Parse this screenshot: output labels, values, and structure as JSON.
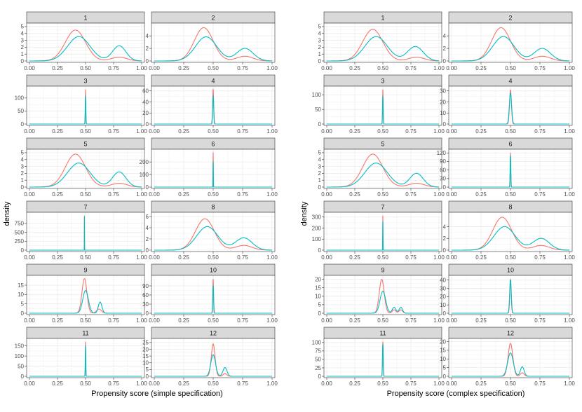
{
  "figure": {
    "ylabel": "density",
    "colors": {
      "treated": "#F8766D",
      "control": "#00BFC4",
      "strip": "#d9d9d9",
      "grid": "#ebebeb",
      "border": "#333333"
    },
    "x_ticks": [
      "0.00",
      "0.25",
      "0.50",
      "0.75",
      "1.00"
    ]
  },
  "chart_data": [
    {
      "type": "line",
      "title": "",
      "xlabel": "Propensity score (simple specification)",
      "ylabel": "density",
      "xlim": [
        0,
        1
      ],
      "series_names": [
        "red",
        "teal"
      ],
      "facets": [
        {
          "label": "1",
          "ylim": [
            0,
            5.3
          ],
          "yticks": [
            0,
            1,
            2,
            3,
            4,
            5
          ],
          "kind": "bimodal",
          "red": [
            [
              0.41,
              0.09,
              4.5
            ],
            [
              0.8,
              0.07,
              0.55
            ]
          ],
          "teal": [
            [
              0.44,
              0.1,
              3.55
            ],
            [
              0.8,
              0.06,
              2.2
            ]
          ]
        },
        {
          "label": "2",
          "ylim": [
            0,
            5.8
          ],
          "yticks": [
            0,
            2,
            4
          ],
          "kind": "bimodal",
          "red": [
            [
              0.42,
              0.08,
              5.3
            ],
            [
              0.77,
              0.07,
              0.75
            ]
          ],
          "teal": [
            [
              0.44,
              0.09,
              3.85
            ],
            [
              0.77,
              0.07,
              2.0
            ]
          ]
        },
        {
          "label": "3",
          "ylim": [
            0,
            140
          ],
          "yticks": [
            0,
            50,
            100
          ],
          "kind": "spike",
          "red": [
            [
              0.5,
              0.0022,
              132
            ]
          ],
          "teal": [
            [
              0.5,
              0.0028,
              108
            ]
          ]
        },
        {
          "label": "4",
          "ylim": [
            0,
            66
          ],
          "yticks": [
            0,
            20,
            40,
            60
          ],
          "kind": "spike",
          "red": [
            [
              0.5,
              0.004,
              63
            ]
          ],
          "teal": [
            [
              0.5,
              0.005,
              51
            ]
          ]
        },
        {
          "label": "5",
          "ylim": [
            0,
            5.3
          ],
          "yticks": [
            0,
            1,
            2,
            3,
            4,
            5
          ],
          "kind": "bimodal",
          "red": [
            [
              0.41,
              0.09,
              4.8
            ],
            [
              0.8,
              0.07,
              0.55
            ]
          ],
          "teal": [
            [
              0.44,
              0.1,
              3.5
            ],
            [
              0.8,
              0.06,
              2.2
            ]
          ]
        },
        {
          "label": "6",
          "ylim": [
            0,
            290
          ],
          "yticks": [
            0,
            100,
            200
          ],
          "kind": "spike",
          "red": [
            [
              0.5,
              0.0012,
              275
            ]
          ],
          "teal": [
            [
              0.5,
              0.0016,
              205
            ]
          ]
        },
        {
          "label": "7",
          "ylim": [
            0,
            1020
          ],
          "yticks": [
            0,
            250,
            500,
            750
          ],
          "kind": "spike",
          "red": [
            [
              0.49,
              0.0005,
              960
            ]
          ],
          "teal": [
            [
              0.49,
              0.0007,
              930
            ]
          ]
        },
        {
          "label": "8",
          "ylim": [
            0,
            6.5
          ],
          "yticks": [
            0,
            2,
            4,
            6
          ],
          "kind": "bimodal",
          "red": [
            [
              0.43,
              0.08,
              5.6
            ],
            [
              0.76,
              0.07,
              0.85
            ]
          ],
          "teal": [
            [
              0.45,
              0.09,
              4.2
            ],
            [
              0.76,
              0.07,
              2.2
            ]
          ]
        },
        {
          "label": "9",
          "ylim": [
            0,
            19.5
          ],
          "yticks": [
            0,
            5,
            10,
            15
          ],
          "kind": "multi",
          "red": [
            [
              0.49,
              0.022,
              18.5
            ],
            [
              0.62,
              0.022,
              2.2
            ]
          ],
          "teal": [
            [
              0.5,
              0.025,
              12.2
            ],
            [
              0.63,
              0.016,
              6.0
            ]
          ]
        },
        {
          "label": "10",
          "ylim": [
            0,
            120
          ],
          "yticks": [
            0,
            30,
            60,
            90
          ],
          "kind": "spike",
          "red": [
            [
              0.5,
              0.003,
              112
            ]
          ],
          "teal": [
            [
              0.5,
              0.004,
              92
            ]
          ]
        },
        {
          "label": "11",
          "ylim": [
            0,
            180
          ],
          "yticks": [
            0,
            50,
            100,
            150
          ],
          "kind": "spike",
          "red": [
            [
              0.5,
              0.002,
              170
            ]
          ],
          "teal": [
            [
              0.5,
              0.0024,
              150
            ]
          ]
        },
        {
          "label": "12",
          "ylim": [
            0,
            27
          ],
          "yticks": [
            0,
            5,
            10,
            15,
            20,
            25
          ],
          "kind": "multi",
          "red": [
            [
              0.5,
              0.016,
              24.0
            ],
            [
              0.6,
              0.016,
              2.0
            ]
          ],
          "teal": [
            [
              0.5,
              0.02,
              16.0
            ],
            [
              0.6,
              0.017,
              6.5
            ]
          ]
        }
      ]
    },
    {
      "type": "line",
      "title": "",
      "xlabel": "Propensity score (complex specification)",
      "ylabel": "density",
      "xlim": [
        0,
        1
      ],
      "series_names": [
        "red",
        "teal"
      ],
      "facets": [
        {
          "label": "1",
          "ylim": [
            0,
            5.3
          ],
          "yticks": [
            0,
            1,
            2,
            3,
            4,
            5
          ],
          "kind": "bimodal",
          "red": [
            [
              0.41,
              0.09,
              4.6
            ],
            [
              0.8,
              0.07,
              0.55
            ]
          ],
          "teal": [
            [
              0.44,
              0.1,
              3.55
            ],
            [
              0.79,
              0.07,
              2.1
            ]
          ]
        },
        {
          "label": "2",
          "ylim": [
            0,
            5.8
          ],
          "yticks": [
            0,
            2,
            4
          ],
          "kind": "bimodal",
          "red": [
            [
              0.42,
              0.08,
              5.3
            ],
            [
              0.77,
              0.07,
              0.75
            ]
          ],
          "teal": [
            [
              0.44,
              0.09,
              3.9
            ],
            [
              0.77,
              0.07,
              2.0
            ]
          ]
        },
        {
          "label": "3",
          "ylim": [
            0,
            125
          ],
          "yticks": [
            0,
            50,
            100
          ],
          "kind": "spike",
          "red": [
            [
              0.5,
              0.0025,
              118
            ]
          ],
          "teal": [
            [
              0.5,
              0.0031,
              95
            ]
          ]
        },
        {
          "label": "4",
          "ylim": [
            0,
            33
          ],
          "yticks": [
            0,
            10,
            20,
            30
          ],
          "kind": "spike",
          "red": [
            [
              0.5,
              0.008,
              31
            ]
          ],
          "teal": [
            [
              0.5,
              0.0095,
              28
            ]
          ]
        },
        {
          "label": "5",
          "ylim": [
            0,
            5.3
          ],
          "yticks": [
            0,
            1,
            2,
            3,
            4,
            5
          ],
          "kind": "bimodal",
          "red": [
            [
              0.41,
              0.09,
              4.8
            ],
            [
              0.8,
              0.07,
              0.55
            ]
          ],
          "teal": [
            [
              0.44,
              0.1,
              3.5
            ],
            [
              0.8,
              0.06,
              2.0
            ]
          ]
        },
        {
          "label": "6",
          "ylim": [
            0,
            128
          ],
          "yticks": [
            0,
            30,
            60,
            90,
            120
          ],
          "kind": "spike",
          "red": [
            [
              0.5,
              0.0024,
              120
            ]
          ],
          "teal": [
            [
              0.5,
              0.003,
              110
            ]
          ]
        },
        {
          "label": "7",
          "ylim": [
            0,
            330
          ],
          "yticks": [
            0,
            100,
            200,
            300
          ],
          "kind": "spike",
          "red": [
            [
              0.5,
              0.001,
              310
            ]
          ],
          "teal": [
            [
              0.5,
              0.0014,
              260
            ]
          ]
        },
        {
          "label": "8",
          "ylim": [
            0,
            6.2
          ],
          "yticks": [
            0,
            2,
            4
          ],
          "kind": "bimodal",
          "red": [
            [
              0.43,
              0.08,
              5.6
            ],
            [
              0.76,
              0.07,
              0.8
            ]
          ],
          "teal": [
            [
              0.45,
              0.09,
              4.0
            ],
            [
              0.76,
              0.07,
              2.0
            ]
          ]
        },
        {
          "label": "9",
          "ylim": [
            0,
            21.5
          ],
          "yticks": [
            0,
            5,
            10,
            15,
            20
          ],
          "kind": "multi",
          "red": [
            [
              0.49,
              0.022,
              20.0
            ],
            [
              0.6,
              0.016,
              2.0
            ],
            [
              0.66,
              0.016,
              2.0
            ]
          ],
          "teal": [
            [
              0.5,
              0.025,
              13.0
            ],
            [
              0.6,
              0.016,
              3.5
            ],
            [
              0.66,
              0.015,
              3.5
            ]
          ]
        },
        {
          "label": "10",
          "ylim": [
            0,
            44
          ],
          "yticks": [
            0,
            10,
            20,
            30,
            40
          ],
          "kind": "spike",
          "red": [
            [
              0.5,
              0.006,
              41
            ]
          ],
          "teal": [
            [
              0.5,
              0.007,
              40
            ]
          ]
        },
        {
          "label": "11",
          "ylim": [
            0,
            108
          ],
          "yticks": [
            0,
            25,
            50,
            75,
            100
          ],
          "kind": "spike",
          "red": [
            [
              0.5,
              0.003,
              102
            ]
          ],
          "teal": [
            [
              0.5,
              0.0036,
              95
            ]
          ]
        },
        {
          "label": "12",
          "ylim": [
            0,
            21
          ],
          "yticks": [
            0,
            5,
            10,
            15,
            20
          ],
          "kind": "multi",
          "red": [
            [
              0.5,
              0.02,
              19.0
            ],
            [
              0.6,
              0.016,
              2.0
            ]
          ],
          "teal": [
            [
              0.5,
              0.024,
              13.5
            ],
            [
              0.6,
              0.016,
              5.5
            ]
          ]
        }
      ]
    }
  ]
}
